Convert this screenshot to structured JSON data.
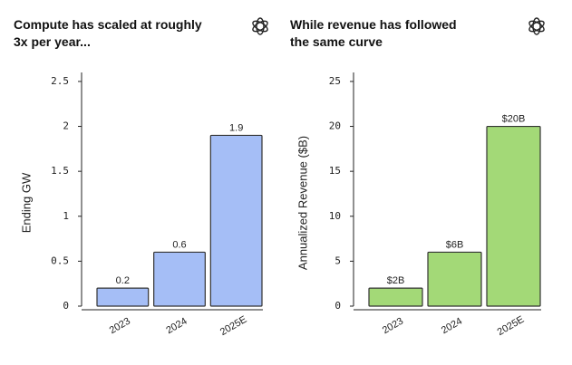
{
  "chart_data": [
    {
      "type": "bar",
      "title": "Compute has scaled at roughly 3x per year...",
      "y_label": "Ending GW",
      "categories": [
        "2023",
        "2024",
        "2025E"
      ],
      "values": [
        0.2,
        0.6,
        1.9
      ],
      "color": "#a5bef6",
      "ylim": [
        0,
        2.6
      ],
      "yticks": [
        0,
        0.5,
        1,
        1.5,
        2,
        2.5
      ]
    },
    {
      "type": "bar",
      "title": "While revenue has followed the same curve",
      "y_label": "Annualized Revenue ($B)",
      "categories": [
        "2023",
        "2024",
        "2025E"
      ],
      "values": [
        2,
        6,
        20
      ],
      "value_labels": [
        "$2B",
        "$6B",
        "$20B"
      ],
      "color": "#a3d977",
      "ylim": [
        0,
        26
      ],
      "yticks": [
        0,
        5,
        10,
        15,
        20,
        25
      ]
    }
  ]
}
